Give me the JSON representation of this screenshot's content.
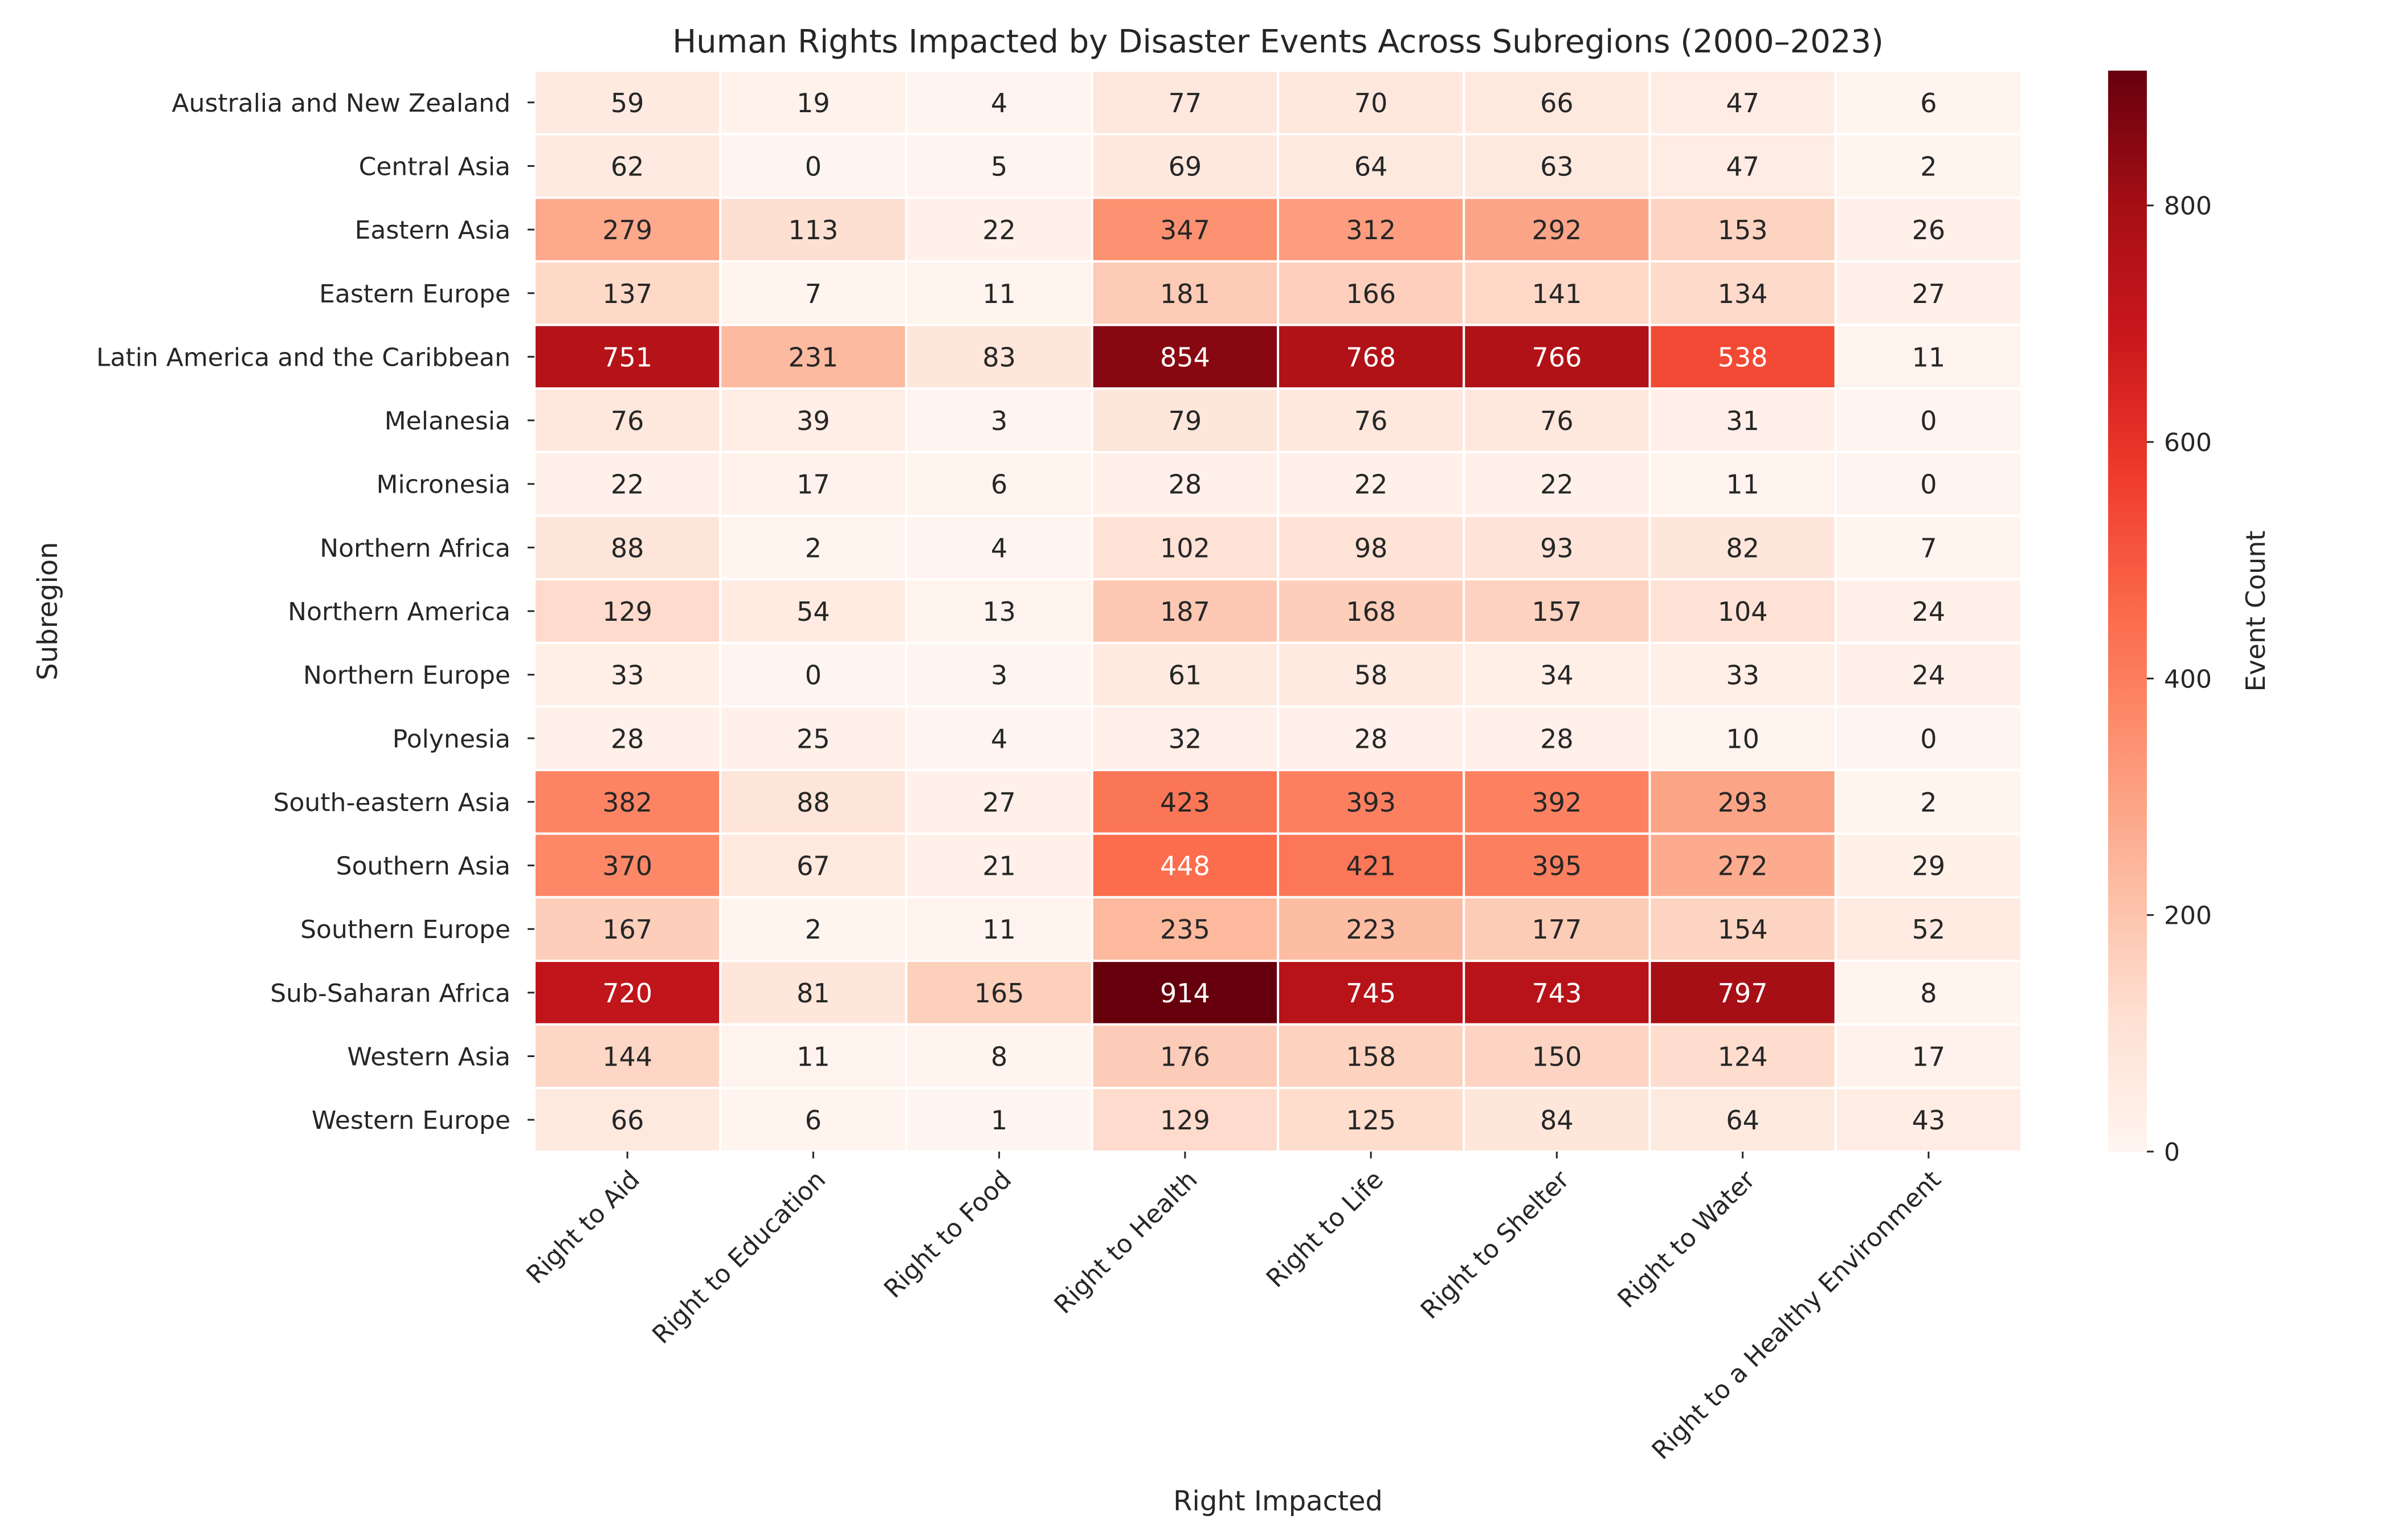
{
  "chart_data": {
    "type": "heatmap",
    "title": "Human Rights Impacted by Disaster Events Across Subregions (2000–2023)",
    "xlabel": "Right Impacted",
    "ylabel": "Subregion",
    "colorbar_label": "Event Count",
    "colormap": "Reds",
    "vmin": 0,
    "vmax": 914,
    "colorbar_ticks": [
      0,
      200,
      400,
      600,
      800
    ],
    "columns": [
      "Right to Aid",
      "Right to Education",
      "Right to Food",
      "Right to Health",
      "Right to Life",
      "Right to Shelter",
      "Right to Water",
      "Right to a Healthy Environment"
    ],
    "rows": [
      "Australia and New Zealand",
      "Central Asia",
      "Eastern Asia",
      "Eastern Europe",
      "Latin America and the Caribbean",
      "Melanesia",
      "Micronesia",
      "Northern Africa",
      "Northern America",
      "Northern Europe",
      "Polynesia",
      "South-eastern Asia",
      "Southern Asia",
      "Southern Europe",
      "Sub-Saharan Africa",
      "Western Asia",
      "Western Europe"
    ],
    "values": [
      [
        59,
        19,
        4,
        77,
        70,
        66,
        47,
        6
      ],
      [
        62,
        0,
        5,
        69,
        64,
        63,
        47,
        2
      ],
      [
        279,
        113,
        22,
        347,
        312,
        292,
        153,
        26
      ],
      [
        137,
        7,
        11,
        181,
        166,
        141,
        134,
        27
      ],
      [
        751,
        231,
        83,
        854,
        768,
        766,
        538,
        11
      ],
      [
        76,
        39,
        3,
        79,
        76,
        76,
        31,
        0
      ],
      [
        22,
        17,
        6,
        28,
        22,
        22,
        11,
        0
      ],
      [
        88,
        2,
        4,
        102,
        98,
        93,
        82,
        7
      ],
      [
        129,
        54,
        13,
        187,
        168,
        157,
        104,
        24
      ],
      [
        33,
        0,
        3,
        61,
        58,
        34,
        33,
        24
      ],
      [
        28,
        25,
        4,
        32,
        28,
        28,
        10,
        0
      ],
      [
        382,
        88,
        27,
        423,
        393,
        392,
        293,
        2
      ],
      [
        370,
        67,
        21,
        448,
        421,
        395,
        272,
        29
      ],
      [
        167,
        2,
        11,
        235,
        223,
        177,
        154,
        52
      ],
      [
        720,
        81,
        165,
        914,
        745,
        743,
        797,
        8
      ],
      [
        144,
        11,
        8,
        176,
        158,
        150,
        124,
        17
      ],
      [
        66,
        6,
        1,
        129,
        125,
        84,
        64,
        43
      ]
    ]
  }
}
